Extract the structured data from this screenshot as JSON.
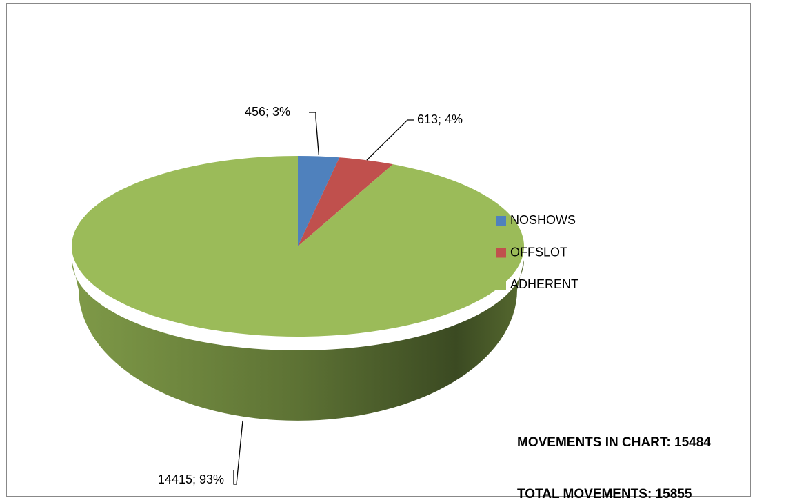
{
  "chart_data": {
    "type": "pie3d",
    "categories": [
      "NOSHOWS",
      "OFFSLOT",
      "ADHERENT"
    ],
    "values": [
      456,
      613,
      14415
    ],
    "value_labels": [
      "456; 3%",
      "613; 4%",
      "14415; 93%"
    ],
    "colors": [
      "#4f81bd",
      "#c0504d",
      "#9bbb59"
    ],
    "legend": "right",
    "annotations": [
      "MOVEMENTS IN CHART:  15484",
      "TOTAL MOVEMENTS: 15855"
    ]
  }
}
